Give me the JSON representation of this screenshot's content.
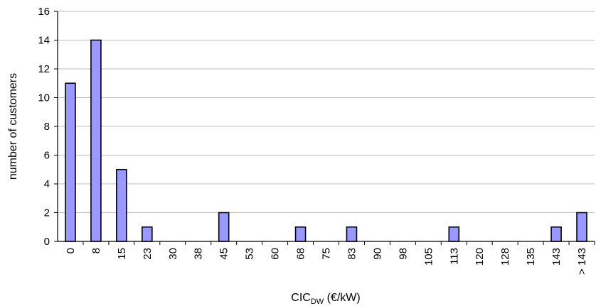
{
  "chart_data": {
    "type": "bar",
    "categories": [
      "0",
      "8",
      "15",
      "23",
      "30",
      "38",
      "45",
      "53",
      "60",
      "68",
      "75",
      "83",
      "90",
      "98",
      "105",
      "113",
      "120",
      "128",
      "135",
      "143",
      "> 143"
    ],
    "values": [
      11,
      14,
      5,
      1,
      0,
      0,
      2,
      0,
      0,
      1,
      0,
      1,
      0,
      0,
      0,
      1,
      0,
      0,
      0,
      1,
      2
    ],
    "xlabel": "CIC",
    "xlabel_sub": "DW",
    "xlabel_unit": " (€/kW)",
    "ylabel": "number of customers",
    "ylim": [
      0,
      16
    ],
    "yticks": [
      0,
      2,
      4,
      6,
      8,
      10,
      12,
      14,
      16
    ],
    "grid": true,
    "bar_color": "#9999ff"
  }
}
